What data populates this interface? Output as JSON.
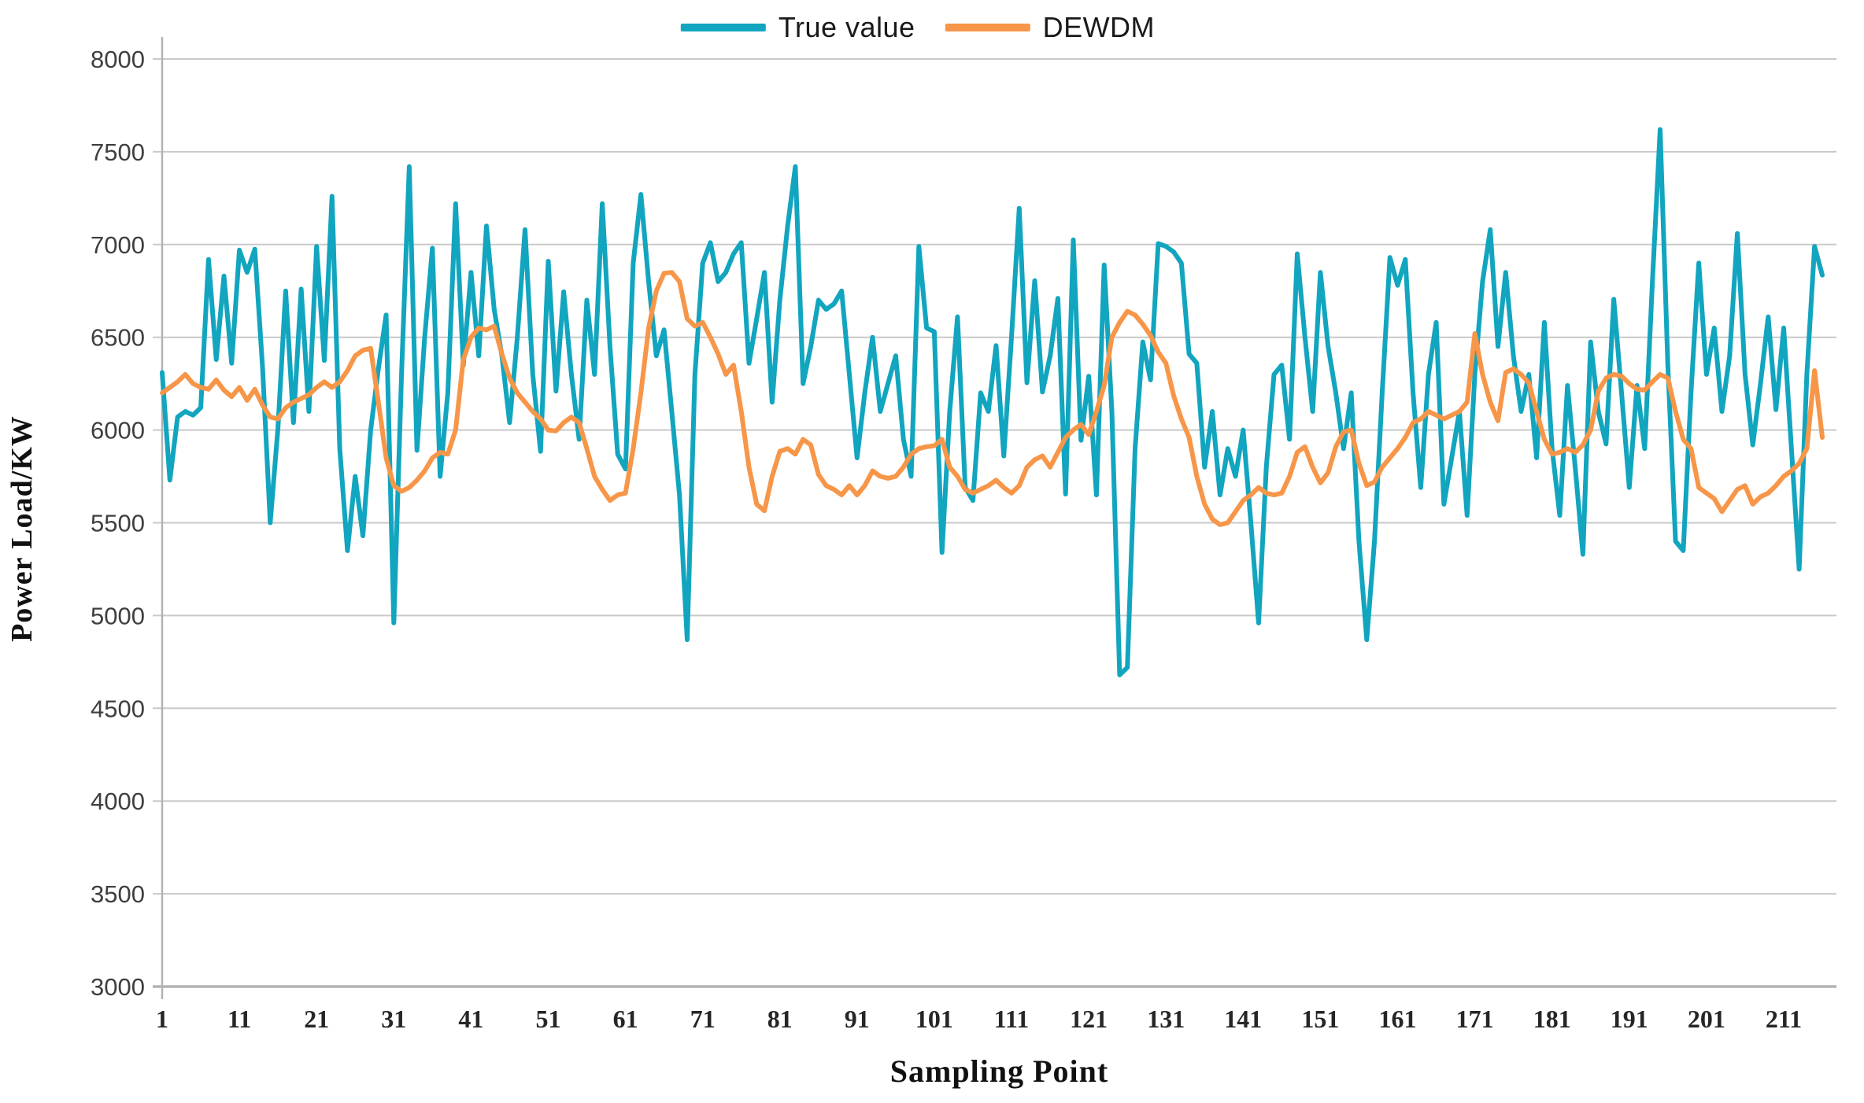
{
  "chart_data": {
    "type": "line",
    "title": "",
    "xlabel": "Sampling Point",
    "ylabel": "Power Load/KW",
    "ylim": [
      3000,
      8000
    ],
    "y_tick_step": 500,
    "y_ticks": [
      3000,
      3500,
      4000,
      4500,
      5000,
      5500,
      6000,
      6500,
      7000,
      7500,
      8000
    ],
    "x_ticks": [
      1,
      11,
      21,
      31,
      41,
      51,
      61,
      71,
      81,
      91,
      101,
      111,
      121,
      131,
      141,
      151,
      161,
      171,
      181,
      191,
      201,
      211
    ],
    "x_range": [
      1,
      216
    ],
    "grid": "horizontal",
    "legend_position": "top-center",
    "axis_color": "#b3b3b3",
    "grid_color": "#c9c9c9",
    "series": [
      {
        "name": "True value",
        "color": "#12a5bf",
        "values": [
          6310,
          5730,
          6070,
          6100,
          6080,
          6120,
          6920,
          6380,
          6830,
          6360,
          6970,
          6850,
          6975,
          6340,
          5500,
          6010,
          6750,
          6040,
          6760,
          6100,
          6990,
          6375,
          7260,
          5900,
          5350,
          5750,
          5430,
          6000,
          6330,
          6620,
          4960,
          6300,
          7420,
          5890,
          6500,
          6980,
          5750,
          6200,
          7220,
          6350,
          6850,
          6400,
          7100,
          6650,
          6400,
          6040,
          6500,
          7080,
          6300,
          5885,
          6910,
          6210,
          6745,
          6300,
          5950,
          6700,
          6300,
          7220,
          6450,
          5870,
          5790,
          6900,
          7270,
          6800,
          6400,
          6540,
          6100,
          5650,
          4870,
          6300,
          6900,
          7010,
          6800,
          6850,
          6950,
          7010,
          6360,
          6600,
          6850,
          6150,
          6700,
          7100,
          7420,
          6250,
          6450,
          6700,
          6650,
          6680,
          6750,
          6300,
          5850,
          6200,
          6500,
          6100,
          6250,
          6400,
          5950,
          5750,
          6990,
          6550,
          6530,
          5340,
          6100,
          6610,
          5690,
          5620,
          6200,
          6100,
          6455,
          5860,
          6500,
          7195,
          6255,
          6805,
          6205,
          6400,
          6710,
          5655,
          7025,
          5945,
          6290,
          5650,
          6890,
          6100,
          4680,
          4720,
          5900,
          6475,
          6270,
          7005,
          6990,
          6960,
          6900,
          6410,
          6360,
          5800,
          6100,
          5650,
          5900,
          5750,
          6000,
          5500,
          4960,
          5800,
          6300,
          6350,
          5950,
          6950,
          6500,
          6100,
          6850,
          6450,
          6200,
          5900,
          6200,
          5400,
          4870,
          5400,
          6200,
          6930,
          6780,
          6920,
          6200,
          5690,
          6300,
          6580,
          5600,
          5850,
          6100,
          5540,
          6300,
          6800,
          7080,
          6450,
          6850,
          6400,
          6100,
          6300,
          5850,
          6580,
          5900,
          5540,
          6240,
          5800,
          5330,
          6475,
          6100,
          5925,
          6705,
          6200,
          5690,
          6240,
          5900,
          6800,
          7620,
          6350,
          5400,
          5350,
          6200,
          6900,
          6300,
          6550,
          6100,
          6400,
          7060,
          6300,
          5920,
          6250,
          6610,
          6110,
          6550,
          5900,
          5250,
          6300,
          6990,
          6835
        ]
      },
      {
        "name": "DEWDM",
        "color": "#f79648",
        "values": [
          6200,
          6230,
          6260,
          6300,
          6250,
          6230,
          6220,
          6270,
          6215,
          6180,
          6230,
          6160,
          6220,
          6135,
          6070,
          6060,
          6120,
          6150,
          6170,
          6190,
          6230,
          6260,
          6230,
          6260,
          6320,
          6400,
          6430,
          6440,
          6150,
          5850,
          5700,
          5670,
          5690,
          5730,
          5780,
          5850,
          5880,
          5870,
          6000,
          6380,
          6500,
          6550,
          6540,
          6560,
          6410,
          6280,
          6200,
          6150,
          6100,
          6060,
          6000,
          5995,
          6040,
          6070,
          6040,
          5900,
          5750,
          5680,
          5620,
          5650,
          5660,
          5900,
          6200,
          6550,
          6750,
          6845,
          6850,
          6800,
          6600,
          6560,
          6580,
          6500,
          6410,
          6300,
          6350,
          6100,
          5800,
          5600,
          5565,
          5750,
          5885,
          5900,
          5870,
          5950,
          5920,
          5760,
          5700,
          5680,
          5650,
          5700,
          5650,
          5700,
          5780,
          5750,
          5740,
          5750,
          5800,
          5870,
          5900,
          5910,
          5915,
          5950,
          5800,
          5750,
          5680,
          5660,
          5680,
          5700,
          5730,
          5690,
          5660,
          5700,
          5800,
          5840,
          5860,
          5800,
          5880,
          5960,
          6000,
          6030,
          5975,
          6100,
          6240,
          6500,
          6580,
          6640,
          6620,
          6570,
          6510,
          6420,
          6360,
          6185,
          6060,
          5960,
          5750,
          5600,
          5520,
          5490,
          5500,
          5560,
          5620,
          5650,
          5690,
          5660,
          5650,
          5660,
          5750,
          5880,
          5910,
          5800,
          5715,
          5770,
          5910,
          5990,
          6000,
          5820,
          5700,
          5720,
          5800,
          5850,
          5900,
          5960,
          6040,
          6060,
          6100,
          6080,
          6060,
          6080,
          6100,
          6150,
          6520,
          6300,
          6150,
          6050,
          6310,
          6330,
          6300,
          6255,
          6100,
          5950,
          5870,
          5880,
          5900,
          5880,
          5920,
          6000,
          6210,
          6280,
          6300,
          6290,
          6250,
          6220,
          6215,
          6260,
          6300,
          6280,
          6100,
          5950,
          5900,
          5690,
          5660,
          5630,
          5560,
          5620,
          5680,
          5700,
          5600,
          5640,
          5660,
          5700,
          5750,
          5780,
          5820,
          5900,
          6320,
          5960
        ]
      }
    ]
  }
}
